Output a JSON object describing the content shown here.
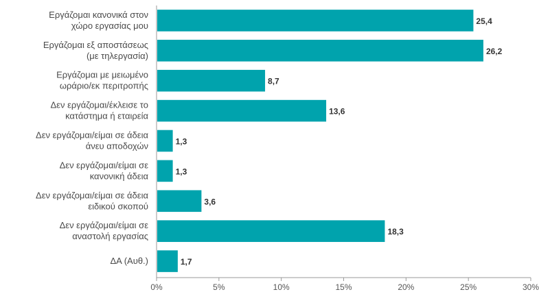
{
  "chart_data": {
    "type": "bar",
    "orientation": "horizontal",
    "title": "",
    "xlabel": "",
    "ylabel": "",
    "xlim": [
      0,
      30
    ],
    "grid": false,
    "legend": "none",
    "bar_color": "#00a3ad",
    "categories": [
      [
        "Εργάζομαι κανονικά στον",
        "χώρο εργασίας μου"
      ],
      [
        "Εργάζομαι εξ αποστάσεως",
        "(με τηλεργασία)"
      ],
      [
        "Εργάζομαι με μειωμένο",
        "ωράριο/εκ περιτροπής"
      ],
      [
        "Δεν εργάζομαι/έκλεισε το",
        "κατάστημα ή εταιρεία"
      ],
      [
        "Δεν εργάζομαι/είμαι σε άδεια",
        "άνευ αποδοχών"
      ],
      [
        "Δεν εργάζομαι/είμαι σε",
        "κανονική άδεια"
      ],
      [
        "Δεν εργάζομαι/είμαι σε άδεια",
        "ειδικού σκοπού"
      ],
      [
        "Δεν εργάζομαι/είμαι σε",
        "αναστολή εργασίας"
      ],
      [
        "ΔΑ (Αυθ.)"
      ]
    ],
    "values": [
      25.4,
      26.2,
      8.7,
      13.6,
      1.3,
      1.3,
      3.6,
      18.3,
      1.7
    ],
    "value_labels": [
      "25,4",
      "26,2",
      "8,7",
      "13,6",
      "1,3",
      "1,3",
      "3,6",
      "18,3",
      "1,7"
    ],
    "ticks": [
      0,
      5,
      10,
      15,
      20,
      25,
      30
    ],
    "tick_labels": [
      "0%",
      "5%",
      "10%",
      "15%",
      "20%",
      "25%",
      "30%"
    ]
  }
}
